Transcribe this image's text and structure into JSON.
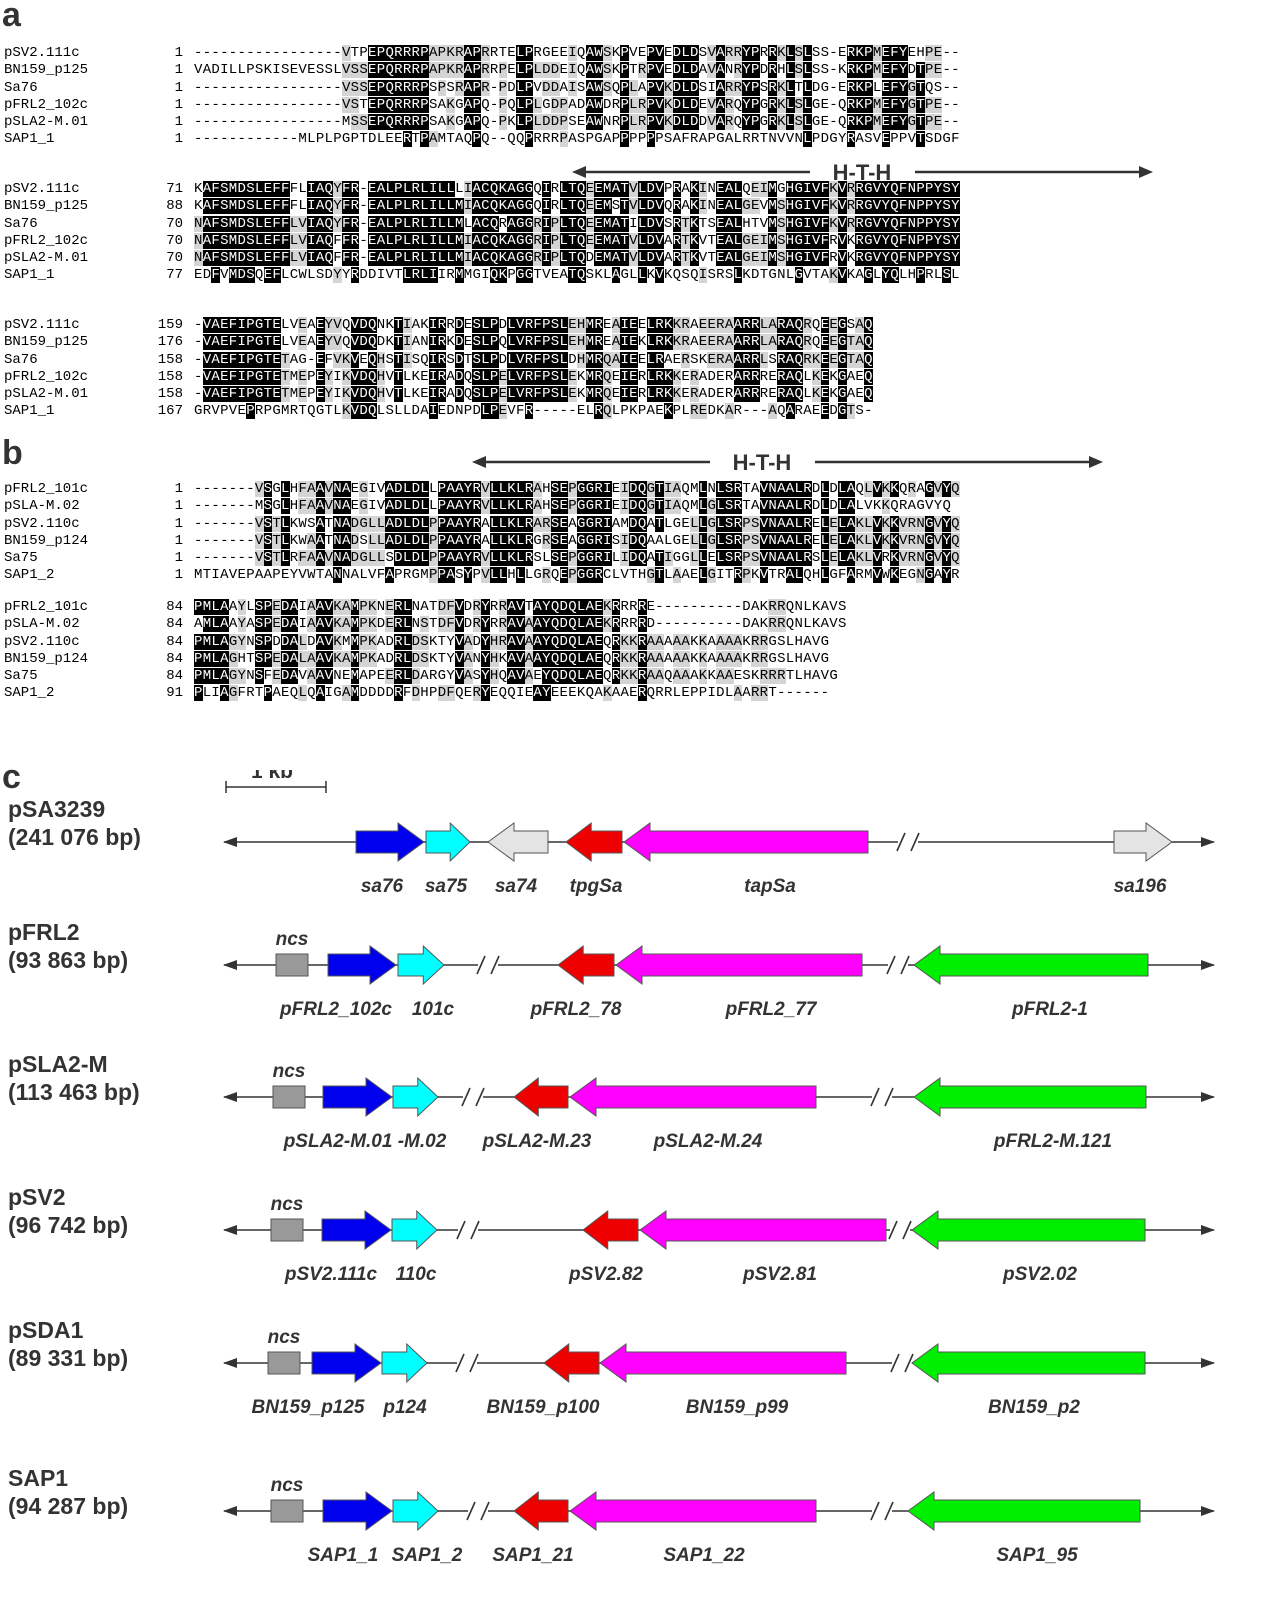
{
  "panels": {
    "a": "a",
    "b": "b",
    "c": "c"
  },
  "hth_label": "H-T-H",
  "scale_label": "1 kb",
  "ncs_label": "ncs",
  "alignment_a": {
    "blocks": [
      {
        "rows": [
          {
            "name": "pSV2.111c",
            "num": "1",
            "seq": "-----------------VTPEPQRRRPAPKRAPRRTELPRGEEIQAWSKPVEPVEDLDSVARRYPRRKLSLSS-ERKPMEFYEHPE--"
          },
          {
            "name": "BN159_p125",
            "num": "1",
            "seq": "VADILLPSKISEVESSLVSSEPQRRRPAPKRAPRRPELPLDDEIQAWSKPTRPVEDLDAVANRYPDRHLSLSS-KRKPMEFYDTPE--"
          },
          {
            "name": "Sa76",
            "num": "1",
            "seq": "-----------------VSSEPQRRRPSPSRAPR-PDLPVDDAISAWSQPLAPVKDLDSIARRYPSRKLTLDG-ERKPLEFYGTQS--"
          },
          {
            "name": "pFRL2_102c",
            "num": "1",
            "seq": "-----------------VSTEPQRRRPSAKGAPQ-PQLPLGDPADAWDRPLRPVKDLDEVARQYPGRKLSLGE-QRKPMEFYGTPE--"
          },
          {
            "name": "pSLA2-M.01",
            "num": "1",
            "seq": "-----------------MSSEPQRRRPSAKGAPQ-PKLPLDDPSEAWNRPLRPVKDLDDVARQYPGRKLSLGE-QRKPMEFYGTPE--"
          },
          {
            "name": "SAP1_1",
            "num": "1",
            "seq": "------------MLPLPGPTDLEERTPAMTAQPQ--QQPRRRPASPGAPPPPPPSAFRAPGALRRTNVVNLPDGYRASVEPPVTSDGF"
          }
        ]
      },
      {
        "rows": [
          {
            "name": "pSV2.111c",
            "num": "71",
            "seq": "KAFSMDSLEFFFLIAQYFR-EALPLRLILLLIACQKAGGQIRLTQEEMATVLDVPRAKINEALQEIMGHGIVFKVRRGVYQFNPPYSY"
          },
          {
            "name": "BN159_p125",
            "num": "88",
            "seq": "KAFSMDSLEFFFLIAQYFR-EALPLRLILLMIACQKAGGQIRLTQEEMSTVLDVQRAKINEALGEVMSHGIVFKVRRGVYQFNPPYSY"
          },
          {
            "name": "Sa76",
            "num": "70",
            "seq": "NAFSMDSLEFFLVIAQYFR-EALPLRLILLMLACQRAGGRIPLTQEEMATILDVSRTKTSEALHTVMSHGIVFKVRRGVYQFNPPYSY"
          },
          {
            "name": "pFRL2_102c",
            "num": "70",
            "seq": "NAFSMDSLEFFLVIAQFFR-EALPLRLILLMIACQKAGGRIPLTQEEMATVLDVARTKVTEALGEIMSHGIVFRVKRGVYQFNPPYSY"
          },
          {
            "name": "pSLA2-M.01",
            "num": "70",
            "seq": "NAFSMDSLEFFLVIAQFFR-EALPLRLILLMIACQKAGGRIPLTQDEMATVLDVARTKVTEALGEIMSHGIVFRVKRGVYQFNPPYSY"
          },
          {
            "name": "SAP1_1",
            "num": "77",
            "seq": "EDFVMDSQEFLCWLSDYYRDDIVTLRLIIRMMGIQKPGGTVEATQSKLAGLLKVKQSQISRSLKDTGNLGVTAKVKAGLYQLHPRLSL"
          }
        ]
      },
      {
        "rows": [
          {
            "name": "pSV2.111c",
            "num": "159",
            "seq": "-VAEFIPGTELVEAEYVQVDQNKTIAKIRRDESLPDLVRFPSLEHMREAIEELRKKRAEERAARRLARAQRQEEGSAQ"
          },
          {
            "name": "BN159_p125",
            "num": "176",
            "seq": "-VAEFIPGTELVEAEYVQVDQDKTIANIRKDESLPQLVRFPSLEHMREAIEKLRKKRAEERAARRLARAQRQEEGTAQ"
          },
          {
            "name": "Sa76",
            "num": "158",
            "seq": "-VAEFIPGTETAG-EFVKVEQHSTISQIRSDTSLPDLVRFPSLDHMRQAIEELRAERSKERAARRLSRAQRKEEGTAQ"
          },
          {
            "name": "pFRL2_102c",
            "num": "158",
            "seq": "-VAEFIPGTETMEPEYIKVDQHVTLKEIRADQSLPELVRFPSLEKMRQEIERLRKKERADERARRRERAQLKEKGAEQ"
          },
          {
            "name": "pSLA2-M.01",
            "num": "158",
            "seq": "-VAEFIPGTETMEPEYIKVDQHVTLKEIRADQSLPELVRFPSLEKMRQEIERLRKKERADERARRRERAQLKEKGAEQ"
          },
          {
            "name": "SAP1_1",
            "num": "167",
            "seq": "GRVPVEPRPGMRTQGTLKVDQLSLLDAIEDNPDLPEVFR-----ELRQLPKPAEKPLREDKAR---AQARAEEDGTS-"
          }
        ]
      }
    ]
  },
  "alignment_b": {
    "blocks": [
      {
        "rows": [
          {
            "name": "pFRL2_101c",
            "num": "1",
            "seq": "-------VSGLHFAAVNAEGIVADLDLLPAAYRVLLKLRAHSEPGGRIEIDQGTIAQMLNLSRTAVNAALRDLDLAQLVKKQRAGVYQ"
          },
          {
            "name": "pSLA-M.02",
            "num": "1",
            "seq": "-------MSGLHFAAVNAEGIVADLDLLPAAYRVLLKLRAHSEPGGRIEIDQGTIAQMLGLSRTAVNAALRDLDLALVKKQRAGVYQ"
          },
          {
            "name": "pSV2.110c",
            "num": "1",
            "seq": "-------VSTLKWSATNADGLLADLDLPPAAYRALLKLRARSEAGGRIAMDQATLGELLGLSRPSVNAALRELELAKLVKKVRNGVYQ"
          },
          {
            "name": "BN159_p124",
            "num": "1",
            "seq": "-------VSTLKWAATNADSLLADLDLPPAAYRALLKLRGRSEAGGRISIDQAALGELLGLSRPSVNAALRELELAKLVKKVRNGVYQ"
          },
          {
            "name": "Sa75",
            "num": "1",
            "seq": "-------VSTLRFAAVNADGLLSDLDLPPAAYRVLLKLRSLSEPGGRILIDQATIGGLLELSRPSVNAALRSLELAKLVRKVRNGVYQ"
          },
          {
            "name": "SAP1_2",
            "num": "1",
            "seq": "MTIAVEPAAPEYVWTANNALVFAPRGMPPASYPVLLHLLGRQEPGGRCLVTHGTLAAELGITRPKVTRALQHLGFARMVWKEGNGAYR"
          }
        ]
      },
      {
        "rows": [
          {
            "name": "pFRL2_101c",
            "num": "84",
            "seq": "PMLAAYLSPEDAIAAVKAMPKNERLNATDFVDRYRRAVTAYQDQLAEKRRRRE----------DAKRRQNLKAVS"
          },
          {
            "name": "pSLA-M.02",
            "num": "84",
            "seq": "AMLAAYASPEDAIAAVKAMPKDERLNSTDFVDRYRRAVAAYQDQLAEKRRRRD----------DAKRRQNLKAVS"
          },
          {
            "name": "pSV2.110c",
            "num": "84",
            "seq": "PMLAGYNSPDDALDAVKMMPKADRLDSKTYVADYHRAVAAYQDQLAEQRKKRAAAAAKKAAAAKRRGSLHAVG"
          },
          {
            "name": "BN159_p124",
            "num": "84",
            "seq": "PMLAGHTSPEDALAAVKAMPKADRLDSKTYVANYHKAVAAYQDQLAEQRKKRAAAAAKKAAAAKRRGSLHAVG"
          },
          {
            "name": "Sa75",
            "num": "84",
            "seq": "PMLAGYNSFEDAVAAVNEMAPEERLDARGYVASYHQAVAEYQDQLAEQRKKRAAQAAAKKAAESKRRRTLHAVG"
          },
          {
            "name": "SAP1_2",
            "num": "91",
            "seq": "PLIAGFRTPAEQLQAIGAMDDDDRFDHPDFQERYEQQIEAYEEEKQAKAAERQRRLEPPIDLAARRT------"
          }
        ]
      }
    ]
  },
  "plasmids": [
    {
      "name": "pSA3239",
      "size": "(241 076 bp)",
      "genes": [
        {
          "label": "sa76"
        },
        {
          "label": "sa75"
        },
        {
          "label": "sa74"
        },
        {
          "label": "tpgSa"
        },
        {
          "label": "tapSa"
        },
        {
          "label": "sa196"
        }
      ]
    },
    {
      "name": "pFRL2",
      "size": "(93 863 bp)",
      "genes": [
        {
          "label": "pFRL2_102c"
        },
        {
          "label": "101c"
        },
        {
          "label": "pFRL2_78"
        },
        {
          "label": "pFRL2_77"
        },
        {
          "label": "pFRL2-1"
        }
      ]
    },
    {
      "name": "pSLA2-M",
      "size": "(113 463 bp)",
      "genes": [
        {
          "label": "pSLA2-M.01 -M.02"
        },
        {
          "label": "pSLA2-M.23"
        },
        {
          "label": "pSLA2-M.24"
        },
        {
          "label": "pFRL2-M.121"
        }
      ]
    },
    {
      "name": "pSV2",
      "size": "(96 742 bp)",
      "genes": [
        {
          "label": "pSV2.111c"
        },
        {
          "label": "110c"
        },
        {
          "label": "pSV2.82"
        },
        {
          "label": "pSV2.81"
        },
        {
          "label": "pSV2.02"
        }
      ]
    },
    {
      "name": "pSDA1",
      "size": "(89 331 bp)",
      "genes": [
        {
          "label": "BN159_p125"
        },
        {
          "label": "p124"
        },
        {
          "label": "BN159_p100"
        },
        {
          "label": "BN159_p99"
        },
        {
          "label": "BN159_p2"
        }
      ]
    },
    {
      "name": "SAP1",
      "size": "(94 287 bp)",
      "genes": [
        {
          "label": "SAP1_1"
        },
        {
          "label": "SAP1_2"
        },
        {
          "label": "SAP1_21"
        },
        {
          "label": "SAP1_22"
        },
        {
          "label": "SAP1_95"
        }
      ]
    }
  ],
  "colors": {
    "blue": "#0000ee",
    "cyan": "#00ffff",
    "red": "#ee0000",
    "magenta": "#ff00ff",
    "green": "#00ee00",
    "lightgray": "#e4e4e4",
    "ncs": "#999999"
  }
}
